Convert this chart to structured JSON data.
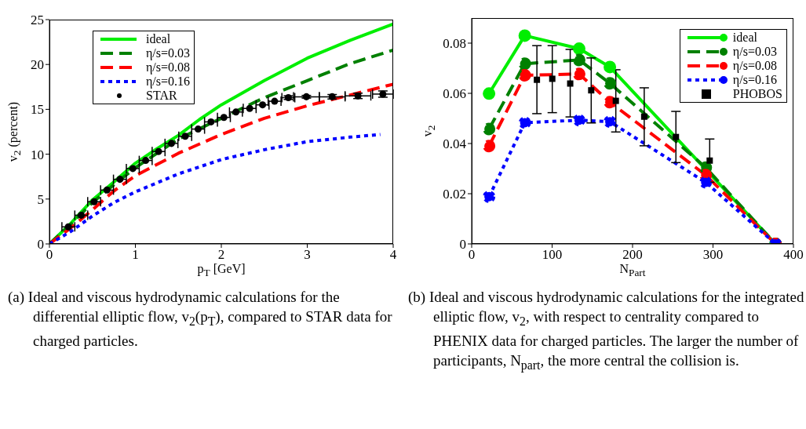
{
  "chart_data": [
    {
      "type": "line",
      "xlabel": "p$_{T}$ [GeV]",
      "ylabel": "v$_{2}$ (percent)",
      "xlim": [
        0,
        4
      ],
      "xticks": [
        0,
        1,
        2,
        3,
        4
      ],
      "ylim": [
        0,
        25
      ],
      "yticks": [
        0,
        5,
        10,
        15,
        20,
        25
      ],
      "legend": "top left",
      "grid": false,
      "series": [
        {
          "name": "ideal",
          "color": "#00ee00",
          "line_style": "solid",
          "marker": "none",
          "x": [
            0,
            0.25,
            0.5,
            0.75,
            1,
            1.25,
            1.5,
            1.75,
            2,
            2.5,
            3,
            3.5,
            4
          ],
          "values": [
            0,
            2.3,
            4.9,
            6.9,
            9.0,
            10.6,
            12.1,
            13.9,
            15.5,
            18.2,
            20.7,
            22.7,
            24.5
          ]
        },
        {
          "name": "η/s=0.03",
          "color": "#008000",
          "line_style": "dashed",
          "marker": "none",
          "x": [
            0,
            0.25,
            0.5,
            0.75,
            1,
            1.5,
            2,
            2.5,
            3,
            3.5,
            4
          ],
          "values": [
            0,
            2.2,
            4.6,
            6.6,
            8.5,
            11.7,
            14.0,
            16.3,
            18.2,
            20.1,
            21.6
          ]
        },
        {
          "name": "η/s=0.08",
          "color": "#ff0000",
          "line_style": "dashed",
          "marker": "none",
          "x": [
            0,
            0.25,
            0.5,
            0.75,
            1,
            1.5,
            2,
            2.5,
            3,
            3.5,
            4
          ],
          "values": [
            0,
            1.8,
            3.8,
            5.9,
            7.6,
            10.1,
            12.2,
            14.0,
            15.4,
            16.6,
            17.8
          ]
        },
        {
          "name": "η/s=0.16",
          "color": "#0000ff",
          "line_style": "dotted",
          "marker": "none",
          "x": [
            0,
            0.25,
            0.5,
            0.75,
            1,
            1.5,
            2,
            2.5,
            3,
            3.5,
            3.85
          ],
          "values": [
            0,
            1.4,
            3.1,
            4.6,
            5.8,
            7.8,
            9.4,
            10.5,
            11.4,
            11.9,
            12.2
          ]
        },
        {
          "name": "STAR",
          "type": "scatter",
          "color": "#000000",
          "marker": "circle",
          "x": [
            0.22,
            0.37,
            0.52,
            0.67,
            0.82,
            0.97,
            1.12,
            1.27,
            1.42,
            1.58,
            1.73,
            1.88,
            2.03,
            2.17,
            2.33,
            2.48,
            2.62,
            2.78,
            2.99,
            3.29,
            3.59,
            3.88
          ],
          "values": [
            1.9,
            3.2,
            4.7,
            6.0,
            7.2,
            8.4,
            9.3,
            10.3,
            11.2,
            12.0,
            12.8,
            13.6,
            14.1,
            14.7,
            15.1,
            15.5,
            15.9,
            16.3,
            16.4,
            16.4,
            16.5,
            16.7
          ],
          "xerrors": [
            0.075,
            0.075,
            0.075,
            0.075,
            0.075,
            0.075,
            0.075,
            0.075,
            0.075,
            0.075,
            0.075,
            0.075,
            0.075,
            0.075,
            0.075,
            0.075,
            0.075,
            0.075,
            0.15,
            0.15,
            0.15,
            0.12
          ],
          "errors": [
            null,
            null,
            null,
            null,
            null,
            null,
            null,
            null,
            null,
            null,
            null,
            null,
            null,
            null,
            null,
            null,
            null,
            0.2,
            0.15,
            0.25,
            0.3,
            0.35
          ]
        }
      ],
      "annotations": [
        "(a) Ideal and viscous hydrodynamic calculations for the differential elliptic flow, v$_{2}$(p$_{T}$), compared to STAR data for charged particles."
      ]
    },
    {
      "type": "line",
      "xlabel": "N$_{Part}$",
      "ylabel": "v$_{2}$",
      "xlim": [
        0,
        400
      ],
      "xticks": [
        0,
        100,
        200,
        300,
        400
      ],
      "ylim": [
        0,
        0.09
      ],
      "yticks": [
        0,
        0.02,
        0.04,
        0.06,
        0.08
      ],
      "legend": "top right",
      "grid": false,
      "series": [
        {
          "name": "ideal",
          "color": "#00ee00",
          "line_style": "solid",
          "marker": "circle",
          "x": [
            21.6,
            66,
            133.6,
            171.8,
            377.7
          ],
          "values": [
            0.0599,
            0.083,
            0.0778,
            0.0705,
            0
          ]
        },
        {
          "name": "η/s=0.03",
          "color": "#008000",
          "line_style": "dashed",
          "marker": "circle",
          "x": [
            21.6,
            66,
            133.6,
            171.8,
            291,
            377.7
          ],
          "values": [
            0.0458,
            0.0718,
            0.0733,
            0.064,
            0.0304,
            0
          ]
        },
        {
          "name": "η/s=0.08",
          "color": "#ff0000",
          "line_style": "dashed",
          "marker": "circle",
          "x": [
            21.6,
            66,
            133.6,
            171.8,
            291,
            377.7
          ],
          "values": [
            0.039,
            0.0672,
            0.0677,
            0.0565,
            0.0274,
            0
          ]
        },
        {
          "name": "η/s=0.16",
          "color": "#0000ff",
          "line_style": "dotted",
          "marker": "circle",
          "x": [
            21.6,
            66,
            133.6,
            171.8,
            291,
            377.7
          ],
          "values": [
            0.0188,
            0.0483,
            0.0493,
            0.0487,
            0.0245,
            0
          ]
        },
        {
          "name": "PHOBOS",
          "type": "scatter",
          "color": "#000000",
          "marker": "square",
          "x": [
            81.1,
            100.2,
            122.5,
            148.6,
            179.2,
            214.5,
            253.9,
            295.9
          ],
          "values": [
            0.0654,
            0.0658,
            0.0639,
            0.0612,
            0.057,
            0.0507,
            0.0426,
            0.0332
          ],
          "errors": [
            [
              0.0519,
              0.079
            ],
            [
              0.0523,
              0.079
            ],
            [
              0.0506,
              0.0775
            ],
            [
              0.0482,
              0.0741
            ],
            [
              0.0446,
              0.0694
            ],
            [
              0.0391,
              0.0622
            ],
            [
              0.0324,
              0.0528
            ],
            [
              0.0246,
              0.0418
            ]
          ]
        }
      ],
      "annotations": [
        "(b) Ideal and viscous hydrodynamic calculations for the integrated elliptic flow, v$_{2}$, with respect to centrality compared to PHENIX data for charged particles. The larger the number of participants, N$_{part}$, the more central the collision is."
      ]
    }
  ]
}
